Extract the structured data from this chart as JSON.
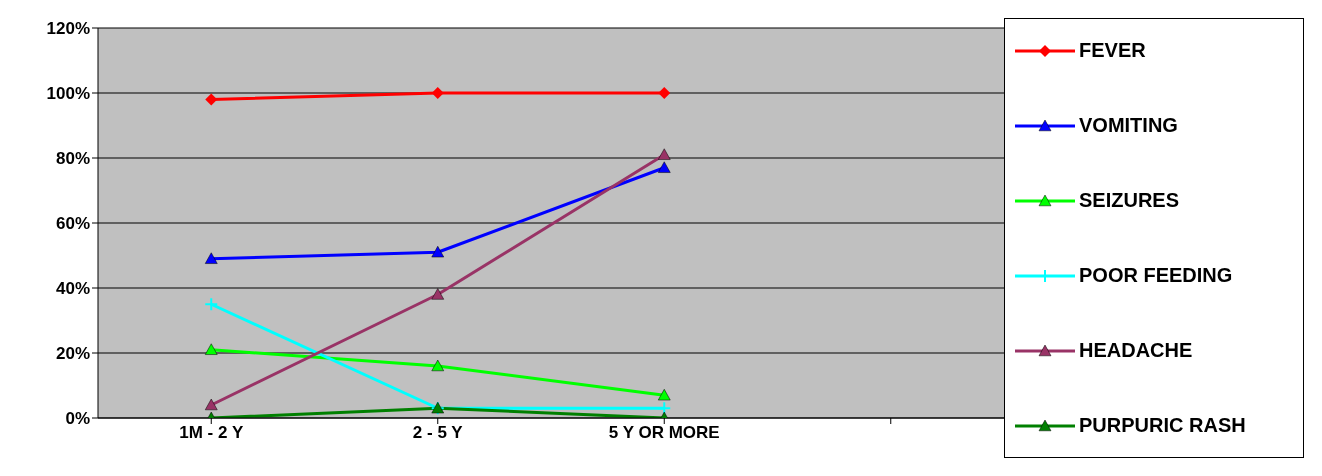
{
  "chart_data": {
    "type": "line",
    "categories": [
      "1M - 2 Y",
      "2 - 5 Y",
      "5 Y OR MORE",
      null
    ],
    "ylim": [
      0,
      120
    ],
    "yticks": [
      {
        "value": 0,
        "label": "0%"
      },
      {
        "value": 20,
        "label": "20%"
      },
      {
        "value": 40,
        "label": "40%"
      },
      {
        "value": 60,
        "label": "60%"
      },
      {
        "value": 80,
        "label": "80%"
      },
      {
        "value": 100,
        "label": "100%"
      },
      {
        "value": 120,
        "label": "120%"
      }
    ],
    "grid": "y",
    "legend": "right",
    "series": [
      {
        "name": "FEVER",
        "color": "#ff0000",
        "marker": "diamond",
        "values": [
          98,
          100,
          100,
          null
        ]
      },
      {
        "name": "VOMITING",
        "color": "#0000ff",
        "marker": "triangle",
        "values": [
          49,
          51,
          77,
          null
        ]
      },
      {
        "name": "SEIZURES",
        "color": "#00ff00",
        "marker": "triangle",
        "values": [
          21,
          16,
          7,
          null
        ]
      },
      {
        "name": "POOR FEEDING",
        "color": "#00ffff",
        "marker": "cross",
        "values": [
          35,
          3,
          3,
          null
        ]
      },
      {
        "name": "HEADACHE",
        "color": "#993366",
        "marker": "triangle",
        "values": [
          4,
          38,
          81,
          null
        ]
      },
      {
        "name": "PURPURIC RASH",
        "color": "#008000",
        "marker": "triangle",
        "values": [
          0,
          3,
          0,
          null
        ]
      }
    ]
  }
}
